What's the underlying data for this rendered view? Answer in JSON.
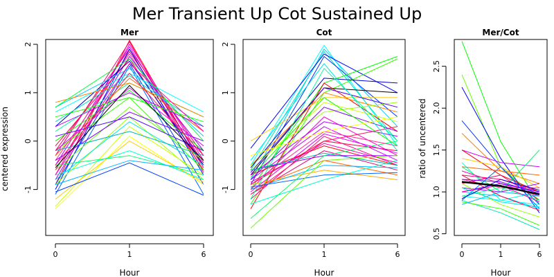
{
  "title": "Mer Transient Up Cot Sustained Up",
  "chart_data": [
    {
      "type": "line",
      "title": "Mer",
      "xlabel": "Hour",
      "ylabel": "centered expression",
      "categories": [
        "0",
        "1",
        "6"
      ],
      "ylim": [
        -1.95,
        2.1
      ],
      "yticks": [
        -1,
        0,
        1,
        2
      ],
      "series": [
        {
          "color": "#ff0000",
          "values": [
            -0.9,
            2.08,
            -0.55
          ]
        },
        {
          "color": "#ff0080",
          "values": [
            -0.3,
            2.05,
            -0.65
          ]
        },
        {
          "color": "#ff00cc",
          "values": [
            -0.7,
            2.0,
            -0.4
          ]
        },
        {
          "color": "#cc00ff",
          "values": [
            -0.5,
            1.95,
            -0.5
          ]
        },
        {
          "color": "#ff0066",
          "values": [
            -0.2,
            1.9,
            -0.3
          ]
        },
        {
          "color": "#e60073",
          "values": [
            -0.6,
            1.85,
            -0.45
          ]
        },
        {
          "color": "#ff3399",
          "values": [
            -0.4,
            1.8,
            -0.55
          ]
        },
        {
          "color": "#9900ff",
          "values": [
            -0.8,
            1.75,
            -0.2
          ]
        },
        {
          "color": "#ff0040",
          "values": [
            -0.1,
            1.7,
            -0.6
          ]
        },
        {
          "color": "#0000ff",
          "values": [
            -1.0,
            1.9,
            -0.7
          ]
        },
        {
          "color": "#0033ff",
          "values": [
            -0.9,
            1.6,
            -0.9
          ]
        },
        {
          "color": "#0066ff",
          "values": [
            -1.1,
            1.55,
            -1.1
          ]
        },
        {
          "color": "#0000cc",
          "values": [
            0.3,
            1.65,
            -0.5
          ]
        },
        {
          "color": "#00ccff",
          "values": [
            0.7,
            1.5,
            0.1
          ]
        },
        {
          "color": "#00ffff",
          "values": [
            0.6,
            1.4,
            0.6
          ]
        },
        {
          "color": "#00e6b8",
          "values": [
            0.4,
            1.35,
            0.3
          ]
        },
        {
          "color": "#00ff99",
          "values": [
            0.2,
            1.2,
            0.5
          ]
        },
        {
          "color": "#00ff00",
          "values": [
            0.0,
            1.05,
            -0.2
          ]
        },
        {
          "color": "#33ff00",
          "values": [
            -0.2,
            0.9,
            -0.6
          ]
        },
        {
          "color": "#66ff00",
          "values": [
            -0.6,
            0.7,
            -0.4
          ]
        },
        {
          "color": "#99ff00",
          "values": [
            -0.9,
            0.5,
            -0.8
          ]
        },
        {
          "color": "#ccff00",
          "values": [
            -1.35,
            0.3,
            -0.7
          ]
        },
        {
          "color": "#ffff00",
          "values": [
            -1.4,
            0.1,
            -0.9
          ]
        },
        {
          "color": "#ffcc00",
          "values": [
            -1.2,
            0.0,
            -0.85
          ]
        },
        {
          "color": "#ff8000",
          "values": [
            0.8,
            1.2,
            0.5
          ]
        },
        {
          "color": "#ff6600",
          "values": [
            -0.3,
            1.3,
            0.2
          ]
        },
        {
          "color": "#00ffcc",
          "values": [
            -0.7,
            -0.2,
            -0.8
          ]
        },
        {
          "color": "#00ff66",
          "values": [
            -0.5,
            -0.3,
            -0.7
          ]
        },
        {
          "color": "#00b3ff",
          "values": [
            -0.9,
            -0.4,
            -0.6
          ]
        },
        {
          "color": "#0040ff",
          "values": [
            -1.05,
            -0.45,
            -1.12
          ]
        },
        {
          "color": "#4d00ff",
          "values": [
            0.1,
            0.5,
            -0.2
          ]
        },
        {
          "color": "#8000ff",
          "values": [
            -0.4,
            0.6,
            0.0
          ]
        },
        {
          "color": "#b300ff",
          "values": [
            0.3,
            1.0,
            0.3
          ]
        },
        {
          "color": "#e600ff",
          "values": [
            -0.2,
            1.1,
            -0.1
          ]
        },
        {
          "color": "#ff00b3",
          "values": [
            -0.7,
            1.6,
            0.2
          ]
        },
        {
          "color": "#ff1a66",
          "values": [
            -0.5,
            1.4,
            -0.3
          ]
        },
        {
          "color": "#1aff00",
          "values": [
            0.5,
            0.9,
            0.4
          ]
        },
        {
          "color": "#00ff40",
          "values": [
            0.7,
            1.7,
            0.0
          ]
        },
        {
          "color": "#00e6e6",
          "values": [
            -0.8,
            0.4,
            -0.5
          ]
        },
        {
          "color": "#00b3b3",
          "values": [
            -0.2,
            0.2,
            -0.3
          ]
        },
        {
          "color": "#000000",
          "values": [
            -0.55,
            1.15,
            -0.4
          ]
        }
      ]
    },
    {
      "type": "line",
      "title": "Cot",
      "xlabel": "Hour",
      "ylabel": "",
      "categories": [
        "0",
        "1",
        "6"
      ],
      "ylim": [
        -1.95,
        2.1
      ],
      "yticks": [
        -1,
        0,
        1,
        2
      ],
      "series": [
        {
          "color": "#00ffff",
          "values": [
            -0.5,
            1.98,
            -0.1
          ]
        },
        {
          "color": "#00ccff",
          "values": [
            -0.8,
            1.9,
            0.3
          ]
        },
        {
          "color": "#00e6b8",
          "values": [
            -0.6,
            1.85,
            0.0
          ]
        },
        {
          "color": "#0000ff",
          "values": [
            -0.15,
            1.8,
            1.0
          ]
        },
        {
          "color": "#0033ff",
          "values": [
            -0.9,
            1.75,
            0.5
          ]
        },
        {
          "color": "#00ff00",
          "values": [
            -1.0,
            1.2,
            1.75
          ]
        },
        {
          "color": "#33ff00",
          "values": [
            -1.3,
            1.0,
            1.7
          ]
        },
        {
          "color": "#000000",
          "values": [
            -0.7,
            1.1,
            1.0
          ]
        },
        {
          "color": "#ff0000",
          "values": [
            -1.4,
            1.2,
            0.2
          ]
        },
        {
          "color": "#ff8000",
          "values": [
            -0.5,
            1.0,
            0.6
          ]
        },
        {
          "color": "#ffcc00",
          "values": [
            0.0,
            0.9,
            0.9
          ]
        },
        {
          "color": "#ccff00",
          "values": [
            -0.6,
            0.8,
            0.4
          ]
        },
        {
          "color": "#ff00cc",
          "values": [
            -1.0,
            0.5,
            -0.3
          ]
        },
        {
          "color": "#cc00ff",
          "values": [
            -0.8,
            0.3,
            -0.4
          ]
        },
        {
          "color": "#ff0080",
          "values": [
            -1.2,
            0.1,
            -0.5
          ]
        },
        {
          "color": "#ff0040",
          "values": [
            -0.9,
            0.0,
            -0.2
          ]
        },
        {
          "color": "#ff0000",
          "values": [
            -0.7,
            -0.1,
            -0.5
          ]
        },
        {
          "color": "#e60073",
          "values": [
            -1.1,
            -0.2,
            -0.6
          ]
        },
        {
          "color": "#9900ff",
          "values": [
            -0.6,
            -0.3,
            -0.3
          ]
        },
        {
          "color": "#ff6600",
          "values": [
            -1.0,
            -0.4,
            -0.7
          ]
        },
        {
          "color": "#ffaa00",
          "values": [
            -0.9,
            -0.6,
            -0.8
          ]
        },
        {
          "color": "#00ffcc",
          "values": [
            -1.3,
            -0.8,
            -0.4
          ]
        },
        {
          "color": "#00b3ff",
          "values": [
            -1.0,
            -0.5,
            -0.55
          ]
        },
        {
          "color": "#0066ff",
          "values": [
            -0.95,
            -0.7,
            -0.65
          ]
        },
        {
          "color": "#00ff66",
          "values": [
            -1.6,
            -0.3,
            0.0
          ]
        },
        {
          "color": "#66ff00",
          "values": [
            -1.8,
            -0.4,
            -0.3
          ]
        },
        {
          "color": "#99ff00",
          "values": [
            -0.5,
            0.6,
            0.8
          ]
        },
        {
          "color": "#8000ff",
          "values": [
            -0.8,
            0.7,
            0.2
          ]
        },
        {
          "color": "#b300ff",
          "values": [
            -0.7,
            0.4,
            0.1
          ]
        },
        {
          "color": "#ff3399",
          "values": [
            -0.9,
            0.2,
            -0.1
          ]
        },
        {
          "color": "#ff1a66",
          "values": [
            -1.1,
            0.0,
            0.3
          ]
        },
        {
          "color": "#0000cc",
          "values": [
            -0.55,
            1.3,
            1.2
          ]
        },
        {
          "color": "#4d00ff",
          "values": [
            -0.65,
            1.1,
            0.7
          ]
        },
        {
          "color": "#00ff99",
          "values": [
            -1.2,
            1.5,
            0.0
          ]
        },
        {
          "color": "#00e6e6",
          "values": [
            -0.4,
            1.6,
            -0.2
          ]
        },
        {
          "color": "#1aff00",
          "values": [
            -0.75,
            0.9,
            -0.1
          ]
        },
        {
          "color": "#ffff00",
          "values": [
            -0.3,
            0.2,
            0.5
          ]
        },
        {
          "color": "#ff00b3",
          "values": [
            -0.85,
            -0.05,
            -0.45
          ]
        },
        {
          "color": "#e600ff",
          "values": [
            -1.05,
            0.15,
            -0.25
          ]
        },
        {
          "color": "#00b3b3",
          "values": [
            -0.6,
            -0.25,
            -0.5
          ]
        }
      ]
    },
    {
      "type": "line",
      "title": "Mer/Cot",
      "xlabel": "Hour",
      "ylabel": "ratio of uncentered",
      "categories": [
        "0",
        "1",
        "6"
      ],
      "ylim": [
        0.48,
        2.82
      ],
      "yticks": [
        0.5,
        1.0,
        1.5,
        2.0,
        2.5
      ],
      "series": [
        {
          "color": "#00ff00",
          "values": [
            2.8,
            1.6,
            0.85
          ]
        },
        {
          "color": "#66ff00",
          "values": [
            2.4,
            1.3,
            0.9
          ]
        },
        {
          "color": "#0000ff",
          "values": [
            2.25,
            1.4,
            0.75
          ]
        },
        {
          "color": "#0033ff",
          "values": [
            1.85,
            1.3,
            0.85
          ]
        },
        {
          "color": "#ff8000",
          "values": [
            1.7,
            1.25,
            1.1
          ]
        },
        {
          "color": "#cc00ff",
          "values": [
            1.5,
            1.35,
            1.3
          ]
        },
        {
          "color": "#ff0000",
          "values": [
            1.5,
            1.2,
            1.0
          ]
        },
        {
          "color": "#ffcc00",
          "values": [
            1.4,
            1.3,
            1.05
          ]
        },
        {
          "color": "#00ffcc",
          "values": [
            1.35,
            0.9,
            1.0
          ]
        },
        {
          "color": "#00ff66",
          "values": [
            1.3,
            1.0,
            1.5
          ]
        },
        {
          "color": "#ff00cc",
          "values": [
            1.25,
            1.1,
            0.95
          ]
        },
        {
          "color": "#ff0080",
          "values": [
            1.2,
            1.15,
            1.0
          ]
        },
        {
          "color": "#ff3399",
          "values": [
            1.15,
            1.05,
            1.05
          ]
        },
        {
          "color": "#e60073",
          "values": [
            1.1,
            1.2,
            0.9
          ]
        },
        {
          "color": "#9900ff",
          "values": [
            1.05,
            1.0,
            1.1
          ]
        },
        {
          "color": "#00ccff",
          "values": [
            1.0,
            0.95,
            0.8
          ]
        },
        {
          "color": "#00ffff",
          "values": [
            0.95,
            0.9,
            0.85
          ]
        },
        {
          "color": "#00e6b8",
          "values": [
            0.9,
            0.75,
            0.55
          ]
        },
        {
          "color": "#33ff00",
          "values": [
            0.88,
            0.8,
            0.6
          ]
        },
        {
          "color": "#00b3ff",
          "values": [
            0.85,
            1.0,
            0.95
          ]
        },
        {
          "color": "#0066ff",
          "values": [
            0.9,
            1.3,
            0.8
          ]
        },
        {
          "color": "#4d00ff",
          "values": [
            1.0,
            1.1,
            1.0
          ]
        },
        {
          "color": "#ff0040",
          "values": [
            1.2,
            0.95,
            0.78
          ]
        },
        {
          "color": "#ff6600",
          "values": [
            1.3,
            1.25,
            1.2
          ]
        },
        {
          "color": "#99ff00",
          "values": [
            1.1,
            0.85,
            0.7
          ]
        },
        {
          "color": "#00ff99",
          "values": [
            0.95,
            1.05,
            0.9
          ]
        },
        {
          "color": "#00e6e6",
          "values": [
            1.05,
            0.88,
            0.82
          ]
        },
        {
          "color": "#8000ff",
          "values": [
            1.15,
            1.12,
            0.98
          ]
        },
        {
          "color": "#ff00b3",
          "values": [
            1.0,
            1.08,
            0.88
          ]
        },
        {
          "color": "#0000cc",
          "values": [
            0.92,
            1.15,
            1.02
          ]
        },
        {
          "color": "#000000",
          "values": [
            1.12,
            1.07,
            0.97
          ],
          "width": 2.5
        }
      ]
    }
  ]
}
